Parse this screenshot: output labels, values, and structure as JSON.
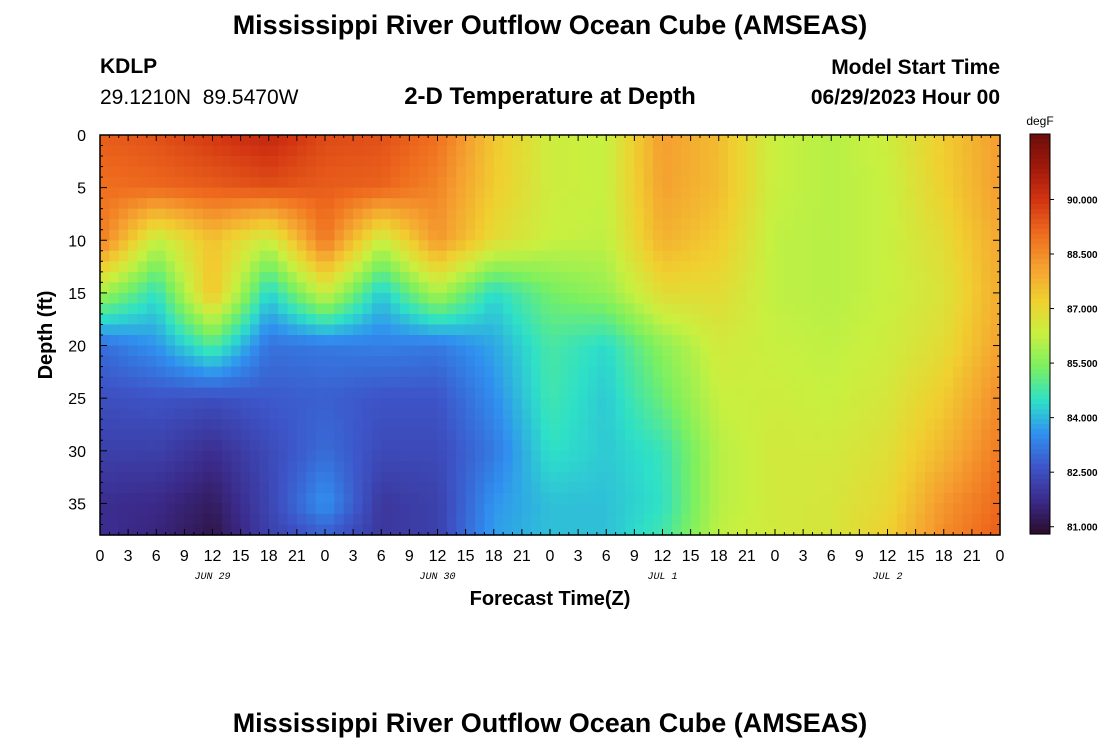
{
  "header": {
    "title": "Mississippi River Outflow Ocean Cube (AMSEAS)",
    "station": "KDLP",
    "coords": "29.1210N  89.5470W",
    "subtitle": "2-D Temperature at Depth",
    "model_start_label": "Model Start Time",
    "model_start_value": "06/29/2023 Hour 00"
  },
  "footer": {
    "title": "Mississippi River Outflow Ocean Cube (AMSEAS)"
  },
  "chart_data": {
    "type": "heatmap",
    "xlabel": "Forecast Time(Z)",
    "ylabel": "Depth (ft)",
    "x_range_hours": [
      0,
      96
    ],
    "x_tick_step_hours": 3,
    "x_tick_labels": [
      "0",
      "3",
      "6",
      "9",
      "12",
      "15",
      "18",
      "21",
      "0",
      "3",
      "6",
      "9",
      "12",
      "15",
      "18",
      "21",
      "0",
      "3",
      "6",
      "9",
      "12",
      "15",
      "18",
      "21",
      "0",
      "3",
      "6",
      "9",
      "12",
      "15",
      "18",
      "21",
      "0"
    ],
    "date_labels": [
      {
        "label": "JUN 29",
        "hour": 12
      },
      {
        "label": "JUN 30",
        "hour": 36
      },
      {
        "label": "JUL 1",
        "hour": 60
      },
      {
        "label": "JUL 2",
        "hour": 84
      }
    ],
    "y_range_ft": [
      0,
      38
    ],
    "y_ticks": [
      0,
      5,
      10,
      15,
      20,
      25,
      30,
      35
    ],
    "colorbar": {
      "units": "degF",
      "range": [
        80.8,
        91.8
      ],
      "ticks": [
        81.0,
        82.5,
        84.0,
        85.5,
        87.0,
        88.5,
        90.0
      ],
      "tick_labels": [
        "81.000",
        "82.500",
        "84.000",
        "85.500",
        "87.000",
        "88.500",
        "90.000"
      ],
      "colormap": [
        "#2a0c2a",
        "#3b2a8a",
        "#3d55c8",
        "#3090f0",
        "#2ee0c8",
        "#7af060",
        "#c8f040",
        "#f0d030",
        "#f5a030",
        "#ef6c1e",
        "#d23412",
        "#a0190a",
        "#6b0c0a"
      ]
    },
    "x_hours": [
      0,
      6,
      12,
      18,
      24,
      30,
      36,
      42,
      48,
      54,
      60,
      66,
      72,
      78,
      84,
      90,
      96
    ],
    "depths_ft": [
      0,
      5,
      10,
      15,
      20,
      25,
      30,
      35,
      38
    ],
    "temperature_degF": [
      [
        89.3,
        89.5,
        89.9,
        90.3,
        89.6,
        89.5,
        89.0,
        87.4,
        86.4,
        86.3,
        88.2,
        87.6,
        86.3,
        86.1,
        86.4,
        87.3,
        88.2
      ],
      [
        89.0,
        89.1,
        89.3,
        89.5,
        89.3,
        89.2,
        88.6,
        87.3,
        86.4,
        86.3,
        88.1,
        87.6,
        86.3,
        86.1,
        86.3,
        87.2,
        88.2
      ],
      [
        88.8,
        86.2,
        87.5,
        86.3,
        88.9,
        86.3,
        88.3,
        86.9,
        86.3,
        86.2,
        87.8,
        87.3,
        86.2,
        86.1,
        86.3,
        86.9,
        88.0
      ],
      [
        85.9,
        84.5,
        87.5,
        84.3,
        86.4,
        84.2,
        86.0,
        84.4,
        85.3,
        85.7,
        86.9,
        86.9,
        86.2,
        86.1,
        86.3,
        86.7,
        87.9
      ],
      [
        83.0,
        83.6,
        84.9,
        83.1,
        83.2,
        83.3,
        83.2,
        83.8,
        84.8,
        84.4,
        85.6,
        86.5,
        86.3,
        86.2,
        86.4,
        86.9,
        88.1
      ],
      [
        82.5,
        82.6,
        82.5,
        82.7,
        82.8,
        82.6,
        82.6,
        83.5,
        84.7,
        84.2,
        85.2,
        86.3,
        86.4,
        86.3,
        86.6,
        87.3,
        88.5
      ],
      [
        82.2,
        82.2,
        81.8,
        82.4,
        83.0,
        82.4,
        82.4,
        83.2,
        84.5,
        84.2,
        84.6,
        86.1,
        86.5,
        86.5,
        86.8,
        87.7,
        88.8
      ],
      [
        81.8,
        81.7,
        81.3,
        82.3,
        83.6,
        82.0,
        82.2,
        83.6,
        84.1,
        84.1,
        84.5,
        86.1,
        86.5,
        86.6,
        87.0,
        88.3,
        89.1
      ],
      [
        81.8,
        81.6,
        81.1,
        82.2,
        82.8,
        82.0,
        82.2,
        83.7,
        84.1,
        84.1,
        84.7,
        86.2,
        86.5,
        86.6,
        87.2,
        88.5,
        89.3
      ]
    ]
  }
}
